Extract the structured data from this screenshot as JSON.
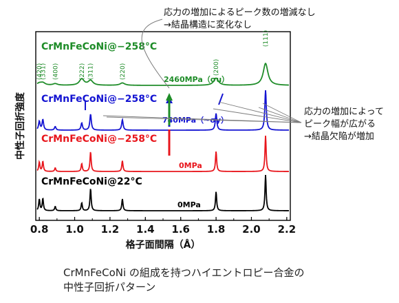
{
  "chart_data": {
    "type": "line",
    "xlabel": "格子面間隔（Å）",
    "ylabel": "中性子回折強度",
    "xlim": [
      0.78,
      2.22
    ],
    "x_ticks": [
      "0.8",
      "1.0",
      "1.2",
      "1.4",
      "1.6",
      "1.8",
      "2.0",
      "2.2"
    ],
    "peak_positions": [
      0.8,
      0.82,
      0.89,
      1.04,
      1.09,
      1.27,
      1.8,
      2.08
    ],
    "series": [
      {
        "name": "CrMnFeCoNi@22°C",
        "condition": "0MPa",
        "color": "#000000",
        "peaks": [
          {
            "x": 0.8,
            "h": 0.32
          },
          {
            "x": 0.82,
            "h": 0.34
          },
          {
            "x": 0.89,
            "h": 0.12
          },
          {
            "x": 1.04,
            "h": 0.22
          },
          {
            "x": 1.09,
            "h": 0.62
          },
          {
            "x": 1.27,
            "h": 0.33
          },
          {
            "x": 1.8,
            "h": 0.53
          },
          {
            "x": 2.08,
            "h": 1.0
          }
        ],
        "width": 0.004
      },
      {
        "name": "CrMnFeCoNi@−258°C",
        "condition": "0MPa",
        "color": "#e8161c",
        "peaks": [
          {
            "x": 0.8,
            "h": 0.26
          },
          {
            "x": 0.82,
            "h": 0.28
          },
          {
            "x": 0.89,
            "h": 0.1
          },
          {
            "x": 1.04,
            "h": 0.22
          },
          {
            "x": 1.09,
            "h": 0.55
          },
          {
            "x": 1.27,
            "h": 0.3
          },
          {
            "x": 1.8,
            "h": 0.56
          },
          {
            "x": 2.08,
            "h": 1.0
          }
        ],
        "width": 0.004
      },
      {
        "name": "CrMnFeCoNi@−258°C",
        "condition": "740MPa（~σy）",
        "color": "#1414d2",
        "peaks": [
          {
            "x": 0.8,
            "h": 0.22
          },
          {
            "x": 0.82,
            "h": 0.26
          },
          {
            "x": 0.89,
            "h": 0.09
          },
          {
            "x": 1.04,
            "h": 0.18
          },
          {
            "x": 1.09,
            "h": 0.4
          },
          {
            "x": 1.27,
            "h": 0.26
          },
          {
            "x": 1.8,
            "h": 0.42
          },
          {
            "x": 2.08,
            "h": 1.0
          }
        ],
        "width": 0.005
      },
      {
        "name": "CrMnFeCoNi@−258°C",
        "condition": "2460MPa（σu）",
        "color": "#1e8c28",
        "peaks": [
          {
            "x": 0.8,
            "h": 0.05
          },
          {
            "x": 0.82,
            "h": 0.06
          },
          {
            "x": 0.89,
            "h": 0.04
          },
          {
            "x": 1.04,
            "h": 0.16
          },
          {
            "x": 1.09,
            "h": 0.12
          },
          {
            "x": 1.27,
            "h": 0.06
          },
          {
            "x": 1.8,
            "h": 0.18
          },
          {
            "x": 2.08,
            "h": 0.55
          }
        ],
        "width": 0.016
      }
    ],
    "hkl_labels": [
      {
        "x": 0.8,
        "text": "(420)"
      },
      {
        "x": 0.82,
        "text": "(331)"
      },
      {
        "x": 0.89,
        "text": "(400)"
      },
      {
        "x": 1.04,
        "text": "(222)"
      },
      {
        "x": 1.09,
        "text": "(311)"
      },
      {
        "x": 1.27,
        "text": "(220)"
      },
      {
        "x": 1.8,
        "text": "(200)"
      },
      {
        "x": 2.08,
        "text": "(111)"
      }
    ],
    "annotations": {
      "top_line1": "応力の増加によるピーク数の増減なし",
      "top_line2": "→結晶構造に変化なし",
      "right_line1": "応力の増加によって",
      "right_line2": "ピーク幅が広がる",
      "right_line3": "→結晶欠陥が増加"
    },
    "colors": {
      "black": "#000000",
      "red": "#e8161c",
      "blue": "#1414d2",
      "green": "#1e8c28",
      "gray": "#7a7a7a"
    }
  },
  "caption": {
    "line1": "CrMnFeCoNi の組成を持つハイエントロピー合金の",
    "line2": "中性子回折パターン"
  }
}
